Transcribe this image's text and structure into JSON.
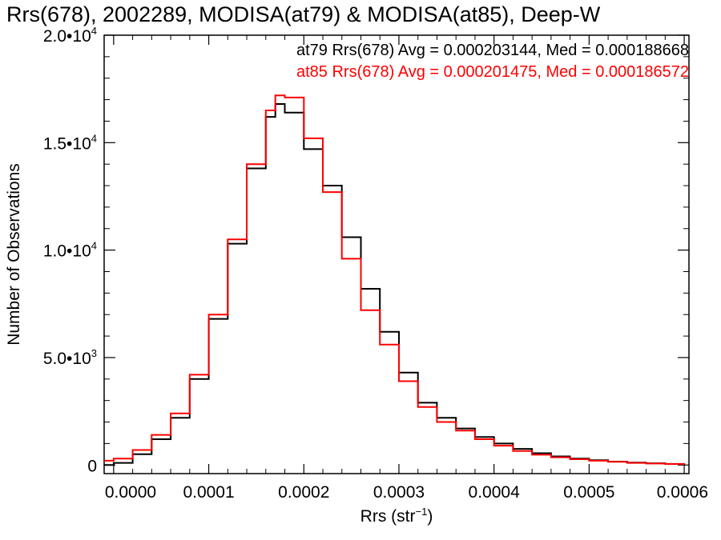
{
  "chart_data": {
    "type": "line",
    "title": "Rrs(678), 2002289, MODISA(at79) & MODISA(at85), Deep-W",
    "xlabel": "Rrs (str",
    "xlabel_exp": "−1",
    "xlabel_close": ")",
    "ylabel": "Number of Observations",
    "xlim": [
      -1e-05,
      0.000605
    ],
    "ylim": [
      -400,
      20000
    ],
    "x_ticks": [
      {
        "value": 0.0,
        "label": "0.0000"
      },
      {
        "value": 0.0001,
        "label": "0.0001"
      },
      {
        "value": 0.0002,
        "label": "0.0002"
      },
      {
        "value": 0.0003,
        "label": "0.0003"
      },
      {
        "value": 0.0004,
        "label": "0.0004"
      },
      {
        "value": 0.0005,
        "label": "0.0005"
      },
      {
        "value": 0.0006,
        "label": "0.0006"
      }
    ],
    "y_ticks": [
      {
        "value": 0,
        "label": "0",
        "exp": ""
      },
      {
        "value": 5000,
        "label": "5.0•10",
        "exp": "3"
      },
      {
        "value": 10000,
        "label": "1.0•10",
        "exp": "4"
      },
      {
        "value": 15000,
        "label": "1.5•10",
        "exp": "4"
      },
      {
        "value": 20000,
        "label": "2.0•10",
        "exp": "4"
      }
    ],
    "grid": false,
    "series": [
      {
        "name": "at79",
        "color": "#000000",
        "annotation": "at79 Rrs(678) Avg = 0.000203144, Med = 0.000188668",
        "points": [
          [
            -1e-05,
            0
          ],
          [
            0.0,
            100
          ],
          [
            2e-05,
            500
          ],
          [
            4e-05,
            1200
          ],
          [
            6e-05,
            2200
          ],
          [
            8e-05,
            4000
          ],
          [
            0.0001,
            6800
          ],
          [
            0.00012,
            10300
          ],
          [
            0.00014,
            13800
          ],
          [
            0.00016,
            16200
          ],
          [
            0.00017,
            16800
          ],
          [
            0.00018,
            16400
          ],
          [
            0.0002,
            14700
          ],
          [
            0.00022,
            13000
          ],
          [
            0.00024,
            10600
          ],
          [
            0.00026,
            8200
          ],
          [
            0.00028,
            6200
          ],
          [
            0.0003,
            4300
          ],
          [
            0.00032,
            2900
          ],
          [
            0.00034,
            2200
          ],
          [
            0.00036,
            1700
          ],
          [
            0.00038,
            1300
          ],
          [
            0.0004,
            1000
          ],
          [
            0.00042,
            750
          ],
          [
            0.00044,
            550
          ],
          [
            0.00046,
            400
          ],
          [
            0.00048,
            300
          ],
          [
            0.0005,
            220
          ],
          [
            0.00052,
            160
          ],
          [
            0.00054,
            110
          ],
          [
            0.00056,
            80
          ],
          [
            0.00058,
            50
          ],
          [
            0.0006,
            30
          ]
        ]
      },
      {
        "name": "at85",
        "color": "#ff0000",
        "annotation": "at85 Rrs(678) Avg = 0.000201475, Med = 0.000186572",
        "points": [
          [
            -1e-05,
            200
          ],
          [
            0.0,
            300
          ],
          [
            2e-05,
            700
          ],
          [
            4e-05,
            1400
          ],
          [
            6e-05,
            2400
          ],
          [
            8e-05,
            4200
          ],
          [
            0.0001,
            7000
          ],
          [
            0.00012,
            10500
          ],
          [
            0.00014,
            14000
          ],
          [
            0.00016,
            16500
          ],
          [
            0.00017,
            17200
          ],
          [
            0.00018,
            17100
          ],
          [
            0.0002,
            15200
          ],
          [
            0.00022,
            12700
          ],
          [
            0.00024,
            9600
          ],
          [
            0.00026,
            7200
          ],
          [
            0.00028,
            5600
          ],
          [
            0.0003,
            3900
          ],
          [
            0.00032,
            2700
          ],
          [
            0.00034,
            2000
          ],
          [
            0.00036,
            1600
          ],
          [
            0.00038,
            1200
          ],
          [
            0.0004,
            900
          ],
          [
            0.00042,
            650
          ],
          [
            0.00044,
            480
          ],
          [
            0.00046,
            360
          ],
          [
            0.00048,
            270
          ],
          [
            0.0005,
            200
          ],
          [
            0.00052,
            150
          ],
          [
            0.00054,
            100
          ],
          [
            0.00056,
            70
          ],
          [
            0.00058,
            45
          ],
          [
            0.0006,
            25
          ]
        ]
      }
    ]
  }
}
